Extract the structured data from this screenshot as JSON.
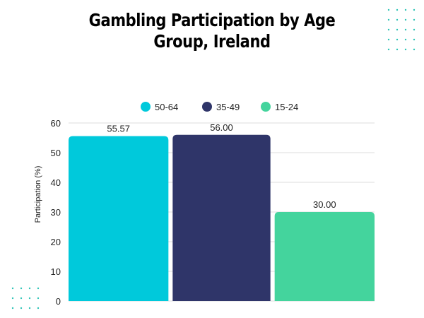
{
  "chart_data": {
    "type": "bar",
    "title": "Gambling Participation by Age Group, Ireland",
    "ylabel": "Participation (%)",
    "xlabel": "",
    "ylim": [
      0,
      60
    ],
    "yticks": [
      0,
      10,
      20,
      30,
      40,
      50,
      60
    ],
    "grid": true,
    "legend_position": "top-center",
    "series": [
      {
        "name": "50-64",
        "value": 55.57,
        "label": "55.57",
        "color": "#00c9db"
      },
      {
        "name": "35-49",
        "value": 56.0,
        "label": "56.00",
        "color": "#2f3569"
      },
      {
        "name": "15-24",
        "value": 30.0,
        "label": "30.00",
        "color": "#44d49d"
      }
    ]
  },
  "colors": {
    "grid": "#dddddd",
    "text": "#222222",
    "decor_dots": "#2ec4b6"
  }
}
